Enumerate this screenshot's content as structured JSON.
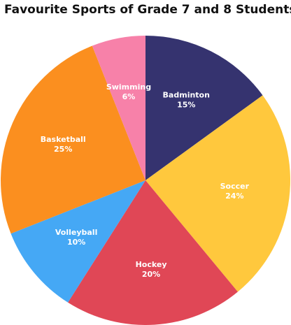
{
  "chart_data": {
    "type": "pie",
    "title": "Favourite Sports of Grade 7 and 8 Students",
    "categories": [
      "Badminton",
      "Soccer",
      "Hockey",
      "Volleyball",
      "Basketball",
      "Swimming"
    ],
    "values": [
      15,
      24,
      20,
      10,
      25,
      6
    ],
    "value_labels": [
      "15%",
      "24%",
      "20%",
      "10%",
      "25%",
      "6%"
    ],
    "colors": [
      "#35336f",
      "#ffc83d",
      "#e04756",
      "#45a8f5",
      "#fb8f1f",
      "#f781a9"
    ]
  }
}
